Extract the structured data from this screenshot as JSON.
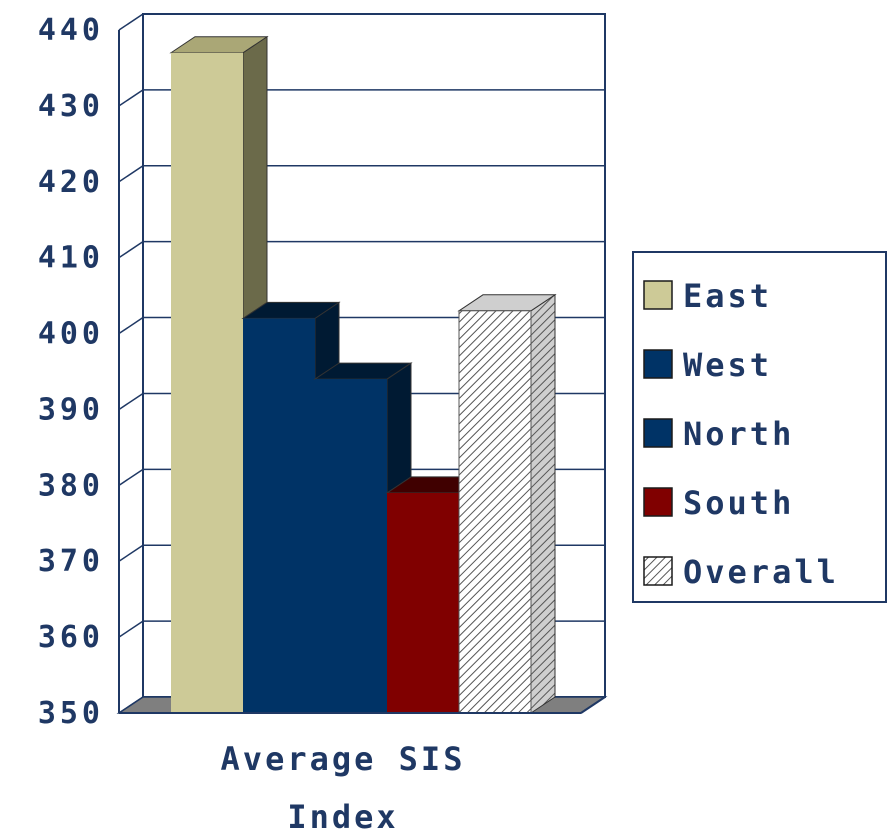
{
  "chart_data": {
    "type": "bar",
    "title": "",
    "xlabel": "",
    "ylabel": "",
    "categories": [
      "Average SIS Index"
    ],
    "category_label_lines": [
      "Average SIS",
      "Index"
    ],
    "ylim": [
      350,
      440
    ],
    "yticks": [
      350,
      360,
      370,
      380,
      390,
      400,
      410,
      420,
      430,
      440
    ],
    "grid": true,
    "legend_position": "right",
    "series": [
      {
        "name": "East",
        "values": [
          437
        ],
        "color": "#cdca97",
        "side_color": "#6b6a4a",
        "pattern": "solid"
      },
      {
        "name": "West",
        "values": [
          402
        ],
        "color": "#003366",
        "side_color": "#001a33",
        "pattern": "solid"
      },
      {
        "name": "North",
        "values": [
          394
        ],
        "color": "#003366",
        "side_color": "#001a33",
        "pattern": "solid"
      },
      {
        "name": "South",
        "values": [
          379
        ],
        "color": "#800000",
        "side_color": "#400000",
        "pattern": "solid"
      },
      {
        "name": "Overall",
        "values": [
          403
        ],
        "color": "#ffffff",
        "side_color": "#c8c8c8",
        "pattern": "hatch"
      }
    ],
    "colors": {
      "axis": "#1f3864",
      "gridline": "#1f3864",
      "floor": "#7f7f7f",
      "text": "#1f3864"
    }
  }
}
